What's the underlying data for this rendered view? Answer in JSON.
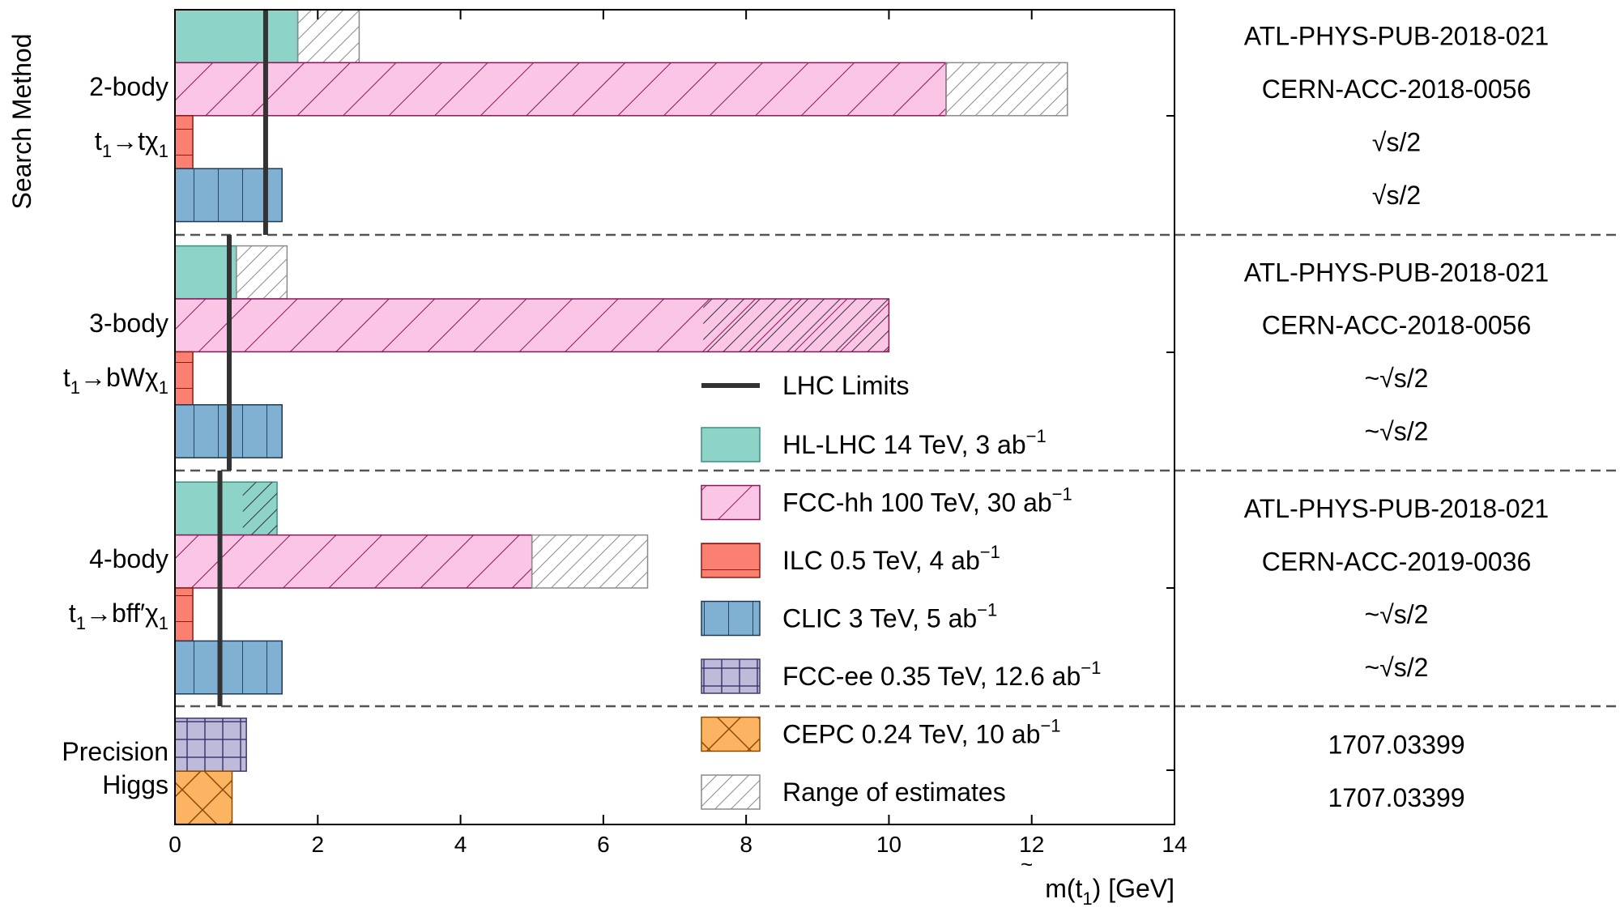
{
  "chart_data": {
    "type": "bar",
    "orientation": "horizontal",
    "xlabel": "m(t̃1) [GeV]",
    "xlabel_parts": {
      "pre": "m(",
      "tilde": "~",
      "var": "t",
      "sub": "1",
      "post": ") [GeV]"
    },
    "ylabel": "Search Method",
    "xlim": [
      0,
      14
    ],
    "xticks": [
      "0",
      "2",
      "4",
      "6",
      "8",
      "10",
      "12",
      "14"
    ],
    "groups": [
      {
        "label_line1": "2-body",
        "decay": "t̃1→tχ̃01",
        "decay_parts": {
          "product": "t",
          "prime": ""
        },
        "lhc_limit": 1.27,
        "bars": [
          {
            "series": "HL-LHC",
            "value": 1.72,
            "range": [
              1.72,
              2.58
            ]
          },
          {
            "series": "FCC-hh",
            "value": 10.8,
            "range": [
              10.8,
              12.5
            ]
          },
          {
            "series": "ILC",
            "value": 0.25
          },
          {
            "series": "CLIC",
            "value": 1.5
          }
        ],
        "refs": [
          "ATL-PHYS-PUB-2018-021",
          "CERN-ACC-2018-0056",
          "√s/2",
          "√s/2"
        ]
      },
      {
        "label_line1": "3-body",
        "decay": "t̃1→bWχ̃01",
        "decay_parts": {
          "product": "bW",
          "prime": ""
        },
        "lhc_limit": 0.76,
        "bars": [
          {
            "series": "HL-LHC",
            "value": 0.86,
            "range": [
              0.86,
              1.57
            ]
          },
          {
            "series": "FCC-hh",
            "value": 10.0,
            "range": [
              7.4,
              10.0
            ]
          },
          {
            "series": "ILC",
            "value": 0.25
          },
          {
            "series": "CLIC",
            "value": 1.5
          }
        ],
        "refs": [
          "ATL-PHYS-PUB-2018-021",
          "CERN-ACC-2018-0056",
          "~√s/2",
          "~√s/2"
        ]
      },
      {
        "label_line1": "4-body",
        "decay": "t̃1→bff′χ̃01",
        "decay_parts": {
          "product": "bff",
          "prime": "′"
        },
        "lhc_limit": 0.63,
        "bars": [
          {
            "series": "HL-LHC",
            "value": 1.43,
            "range": [
              0.95,
              1.43
            ]
          },
          {
            "series": "FCC-hh",
            "value": 5.0,
            "range": [
              5.0,
              6.62
            ]
          },
          {
            "series": "ILC",
            "value": 0.25
          },
          {
            "series": "CLIC",
            "value": 1.5
          }
        ],
        "refs": [
          "ATL-PHYS-PUB-2018-021",
          "CERN-ACC-2019-0036",
          "~√s/2",
          "~√s/2"
        ]
      },
      {
        "label_line1": "Precision",
        "label_line2": "Higgs",
        "bars": [
          {
            "series": "FCC-ee",
            "value": 1.0
          },
          {
            "series": "CEPC",
            "value": 0.8
          }
        ],
        "refs": [
          "1707.03399",
          "1707.03399"
        ]
      }
    ],
    "series": [
      {
        "key": "HL-LHC",
        "name": "HL-LHC 14 TeV, 3 ab",
        "exp": "−1",
        "color": "#8dd3c7",
        "edge": "#3d8f82",
        "hatch": "none"
      },
      {
        "key": "FCC-hh",
        "name": "FCC-hh 100 TeV, 30 ab",
        "exp": "−1",
        "color": "#fbc6e6",
        "edge": "#8a1457",
        "hatch": "diagonal"
      },
      {
        "key": "ILC",
        "name": "ILC 0.5 TeV, 4 ab",
        "exp": "−1",
        "color": "#fb8072",
        "edge": "#8b1c10",
        "hatch": "horizontal"
      },
      {
        "key": "CLIC",
        "name": "CLIC 3 TeV, 5 ab",
        "exp": "−1",
        "color": "#80b1d3",
        "edge": "#1d3a56",
        "hatch": "vertical"
      },
      {
        "key": "FCC-ee",
        "name": "FCC-ee 0.35 TeV, 12.6 ab",
        "exp": "−1",
        "color": "#bebada",
        "edge": "#3f3a6e",
        "hatch": "grid"
      },
      {
        "key": "CEPC",
        "name": "CEPC 0.24 TeV, 10 ab",
        "exp": "−1",
        "color": "#fdb462",
        "edge": "#8a4a00",
        "hatch": "cross"
      }
    ],
    "lhc_label": "LHC Limits",
    "lhc_color": "#333333",
    "range_label": "Range of estimates",
    "range_color": "#888888",
    "grid": false,
    "legend_position": "center-right"
  }
}
